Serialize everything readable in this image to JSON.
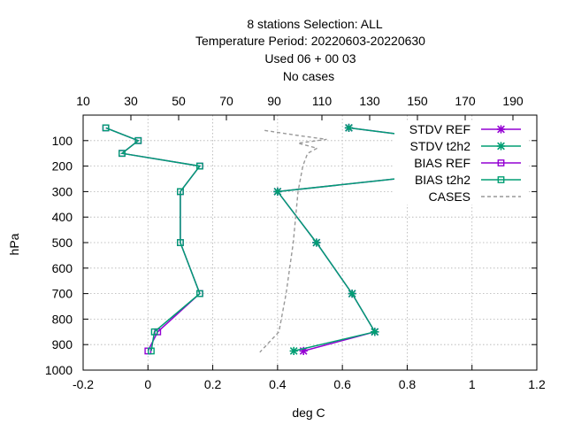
{
  "chart_data": {
    "type": "line",
    "title_lines": [
      "8 stations Selection: ALL",
      "Temperature  Period: 20220603-20220630",
      "Used  06  + 00 03",
      "No cases"
    ],
    "xlabel": "deg C",
    "ylabel": "hPa",
    "xlim": [
      -0.2,
      1.2
    ],
    "ylim": [
      1000,
      0
    ],
    "x_ticks": [
      "-0.2",
      "0",
      "0.2",
      "0.4",
      "0.6",
      "0.8",
      "1",
      "1.2"
    ],
    "x_tick_values": [
      -0.2,
      0,
      0.2,
      0.4,
      0.6,
      0.8,
      1,
      1.2
    ],
    "y_ticks": [
      "100",
      "200",
      "300",
      "400",
      "500",
      "600",
      "700",
      "800",
      "900",
      "1000"
    ],
    "y_tick_values": [
      100,
      200,
      300,
      400,
      500,
      600,
      700,
      800,
      900,
      1000
    ],
    "x2lim": [
      10,
      200
    ],
    "x2_ticks": [
      "10",
      "30",
      "50",
      "70",
      "90",
      "110",
      "130",
      "150",
      "170",
      "190"
    ],
    "x2_tick_values": [
      10,
      30,
      50,
      70,
      90,
      110,
      130,
      150,
      170,
      190
    ],
    "grid": true,
    "legend_position": "top-right",
    "series": [
      {
        "name": "STDV REF",
        "color": "#9400d3",
        "marker": "star",
        "axis": "x1",
        "points": [
          [
            0.62,
            50
          ],
          [
            0.93,
            100
          ],
          [
            0.86,
            150
          ],
          [
            1.13,
            200
          ],
          [
            0.4,
            300
          ],
          [
            0.52,
            500
          ],
          [
            0.63,
            700
          ],
          [
            0.7,
            850
          ],
          [
            0.48,
            925
          ]
        ]
      },
      {
        "name": "STDV t2h2",
        "color": "#009e73",
        "marker": "star",
        "axis": "x1",
        "points": [
          [
            0.62,
            50
          ],
          [
            0.93,
            100
          ],
          [
            0.86,
            150
          ],
          [
            1.13,
            200
          ],
          [
            0.4,
            300
          ],
          [
            0.52,
            500
          ],
          [
            0.63,
            700
          ],
          [
            0.7,
            850
          ],
          [
            0.45,
            925
          ]
        ]
      },
      {
        "name": "BIAS REF",
        "color": "#9400d3",
        "marker": "square",
        "axis": "x1",
        "points": [
          [
            -0.13,
            50
          ],
          [
            -0.03,
            100
          ],
          [
            -0.08,
            150
          ],
          [
            0.16,
            200
          ],
          [
            0.1,
            300
          ],
          [
            0.1,
            500
          ],
          [
            0.16,
            700
          ],
          [
            0.03,
            850
          ],
          [
            0.0,
            925
          ]
        ]
      },
      {
        "name": "BIAS t2h2",
        "color": "#009e73",
        "marker": "square",
        "axis": "x1",
        "points": [
          [
            -0.13,
            50
          ],
          [
            -0.03,
            100
          ],
          [
            -0.08,
            150
          ],
          [
            0.16,
            200
          ],
          [
            0.1,
            300
          ],
          [
            0.1,
            500
          ],
          [
            0.16,
            700
          ],
          [
            0.02,
            850
          ],
          [
            0.01,
            925
          ]
        ]
      },
      {
        "name": "CASES",
        "color": "#999999",
        "marker": "none",
        "dashed": true,
        "axis": "x2",
        "points": [
          [
            86,
            60
          ],
          [
            100,
            80
          ],
          [
            112,
            95
          ],
          [
            100,
            110
          ],
          [
            108,
            130
          ],
          [
            104,
            150
          ],
          [
            102,
            200
          ],
          [
            100,
            300
          ],
          [
            98,
            500
          ],
          [
            95,
            700
          ],
          [
            92,
            850
          ],
          [
            84,
            930
          ]
        ]
      }
    ]
  }
}
